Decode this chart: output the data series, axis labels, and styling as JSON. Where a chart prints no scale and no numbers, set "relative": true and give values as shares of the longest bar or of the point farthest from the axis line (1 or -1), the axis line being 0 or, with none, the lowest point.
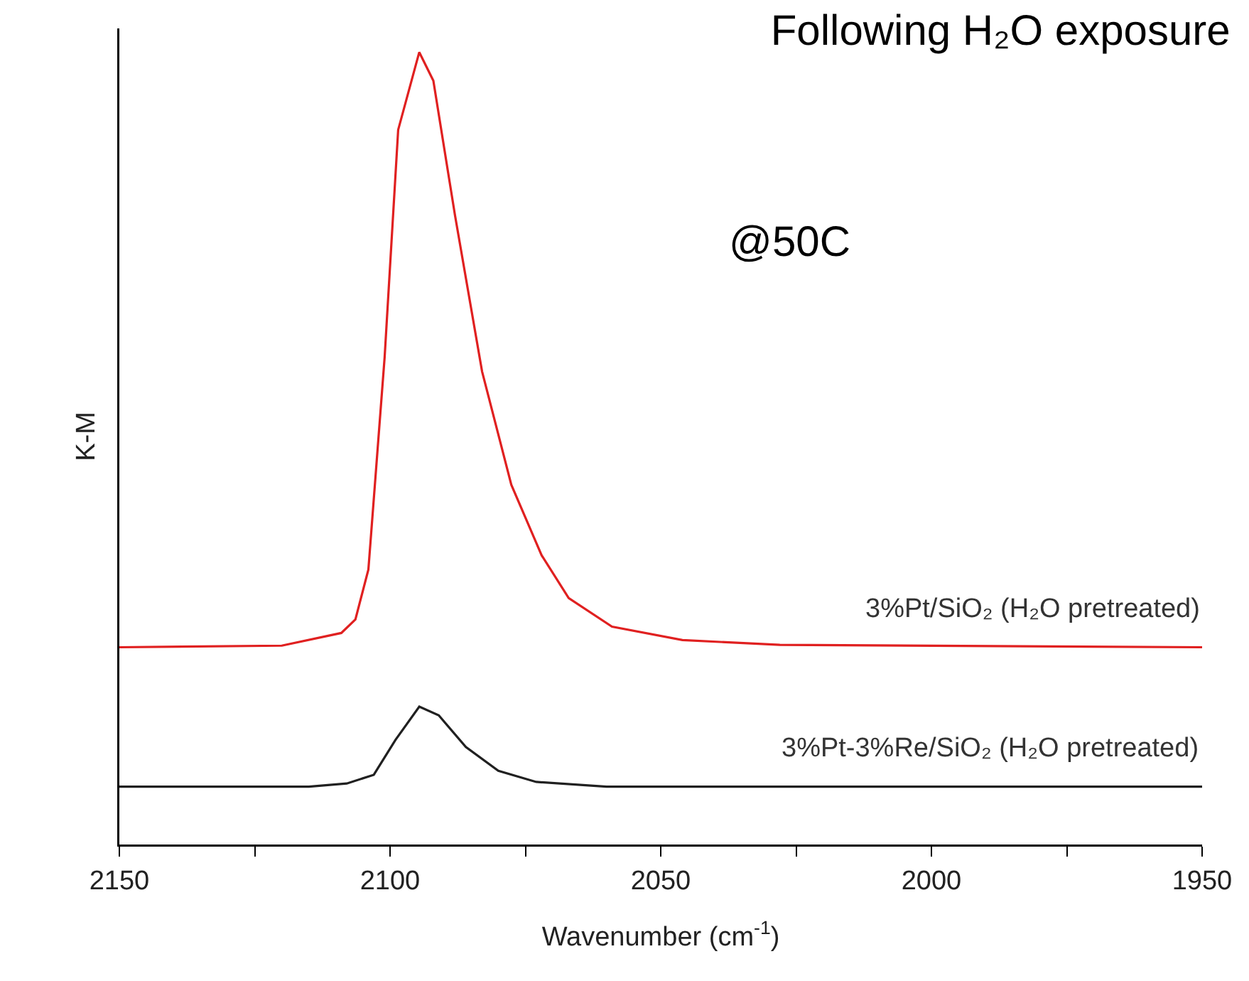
{
  "chart_data": {
    "type": "line",
    "title": "Following H₂O exposure",
    "xlabel": "Wavenumber (cm$^{-1}$)",
    "ylabel": "K-M",
    "relative": true,
    "legend": false,
    "grid": false,
    "marker": "none",
    "line_style": "solid",
    "xlim": [
      2150,
      1950
    ],
    "xticks": [
      2150,
      {
        "value": 2125,
        "label": null
      },
      2100,
      {
        "value": 2075,
        "label": null
      },
      2050,
      {
        "value": 2025,
        "label": null
      },
      2000,
      {
        "value": 1975,
        "label": null
      },
      1950
    ],
    "annotations": [
      "@50C"
    ],
    "series": [
      {
        "name": "3%Pt/SiO₂ (H₂O pretreated)",
        "color": "#e02020",
        "x": [
          2150,
          2120,
          2109,
          2106.4,
          2104,
          2101,
          2098.5,
          2094.6,
          2092,
          2088,
          2083,
          2077.6,
          2072,
          2067,
          2059,
          2046,
          2028,
          1950
        ],
        "values": [
          0.249,
          0.251,
          0.267,
          0.284,
          0.347,
          0.615,
          0.902,
          1,
          0.964,
          0.794,
          0.597,
          0.454,
          0.365,
          0.311,
          0.275,
          0.258,
          0.252,
          0.249
        ]
      },
      {
        "name": "3%Pt-3%Re/SiO₂ (H₂O pretreated)",
        "color": "#202020",
        "x": [
          2150,
          2115,
          2108,
          2103,
          2099,
          2094.6,
          2091,
          2086,
          2080,
          2073,
          2060,
          1950
        ],
        "values": [
          0.073,
          0.073,
          0.077,
          0.088,
          0.132,
          0.174,
          0.163,
          0.123,
          0.093,
          0.079,
          0.073,
          0.073
        ]
      }
    ]
  }
}
